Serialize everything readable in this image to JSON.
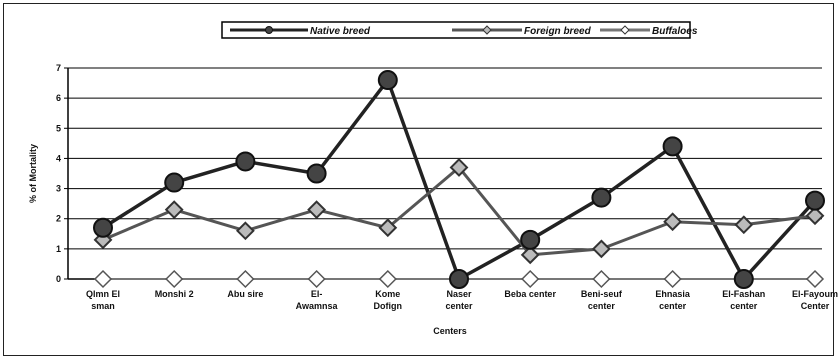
{
  "chart_data": {
    "type": "line",
    "title": "",
    "xlabel": "Centers",
    "ylabel": "% of Mortality",
    "ylim": [
      0,
      7
    ],
    "yticks": [
      0,
      1,
      2,
      3,
      4,
      5,
      6,
      7
    ],
    "grid": true,
    "legend_position": "top",
    "categories": [
      [
        "Qlmn El",
        "sman"
      ],
      [
        "Monshi 2"
      ],
      [
        "Abu sire"
      ],
      [
        "El-",
        "Awamnsa"
      ],
      [
        "Kome",
        "Dofign"
      ],
      [
        "Naser",
        "center"
      ],
      [
        "Beba center"
      ],
      [
        "Beni-seuf",
        "center"
      ],
      [
        "Ehnasia",
        "center"
      ],
      [
        "El-Fashan",
        "center"
      ],
      [
        "El-Fayoum",
        "Center"
      ]
    ],
    "series": [
      {
        "name": "Native breed",
        "marker": "circle",
        "color": "#222222",
        "values": [
          1.7,
          3.2,
          3.9,
          3.5,
          6.6,
          0.0,
          1.3,
          2.7,
          4.4,
          0.0,
          2.6
        ]
      },
      {
        "name": "Foreign breed",
        "marker": "diamond-filled",
        "color": "#555555",
        "values": [
          1.3,
          2.3,
          1.6,
          2.3,
          1.7,
          3.7,
          0.8,
          1.0,
          1.9,
          1.8,
          2.1
        ]
      },
      {
        "name": "Buffaloes",
        "marker": "diamond-open",
        "color": "#777777",
        "values": [
          0,
          0,
          0,
          0,
          0,
          0,
          0,
          0,
          0,
          0,
          0
        ]
      }
    ]
  }
}
